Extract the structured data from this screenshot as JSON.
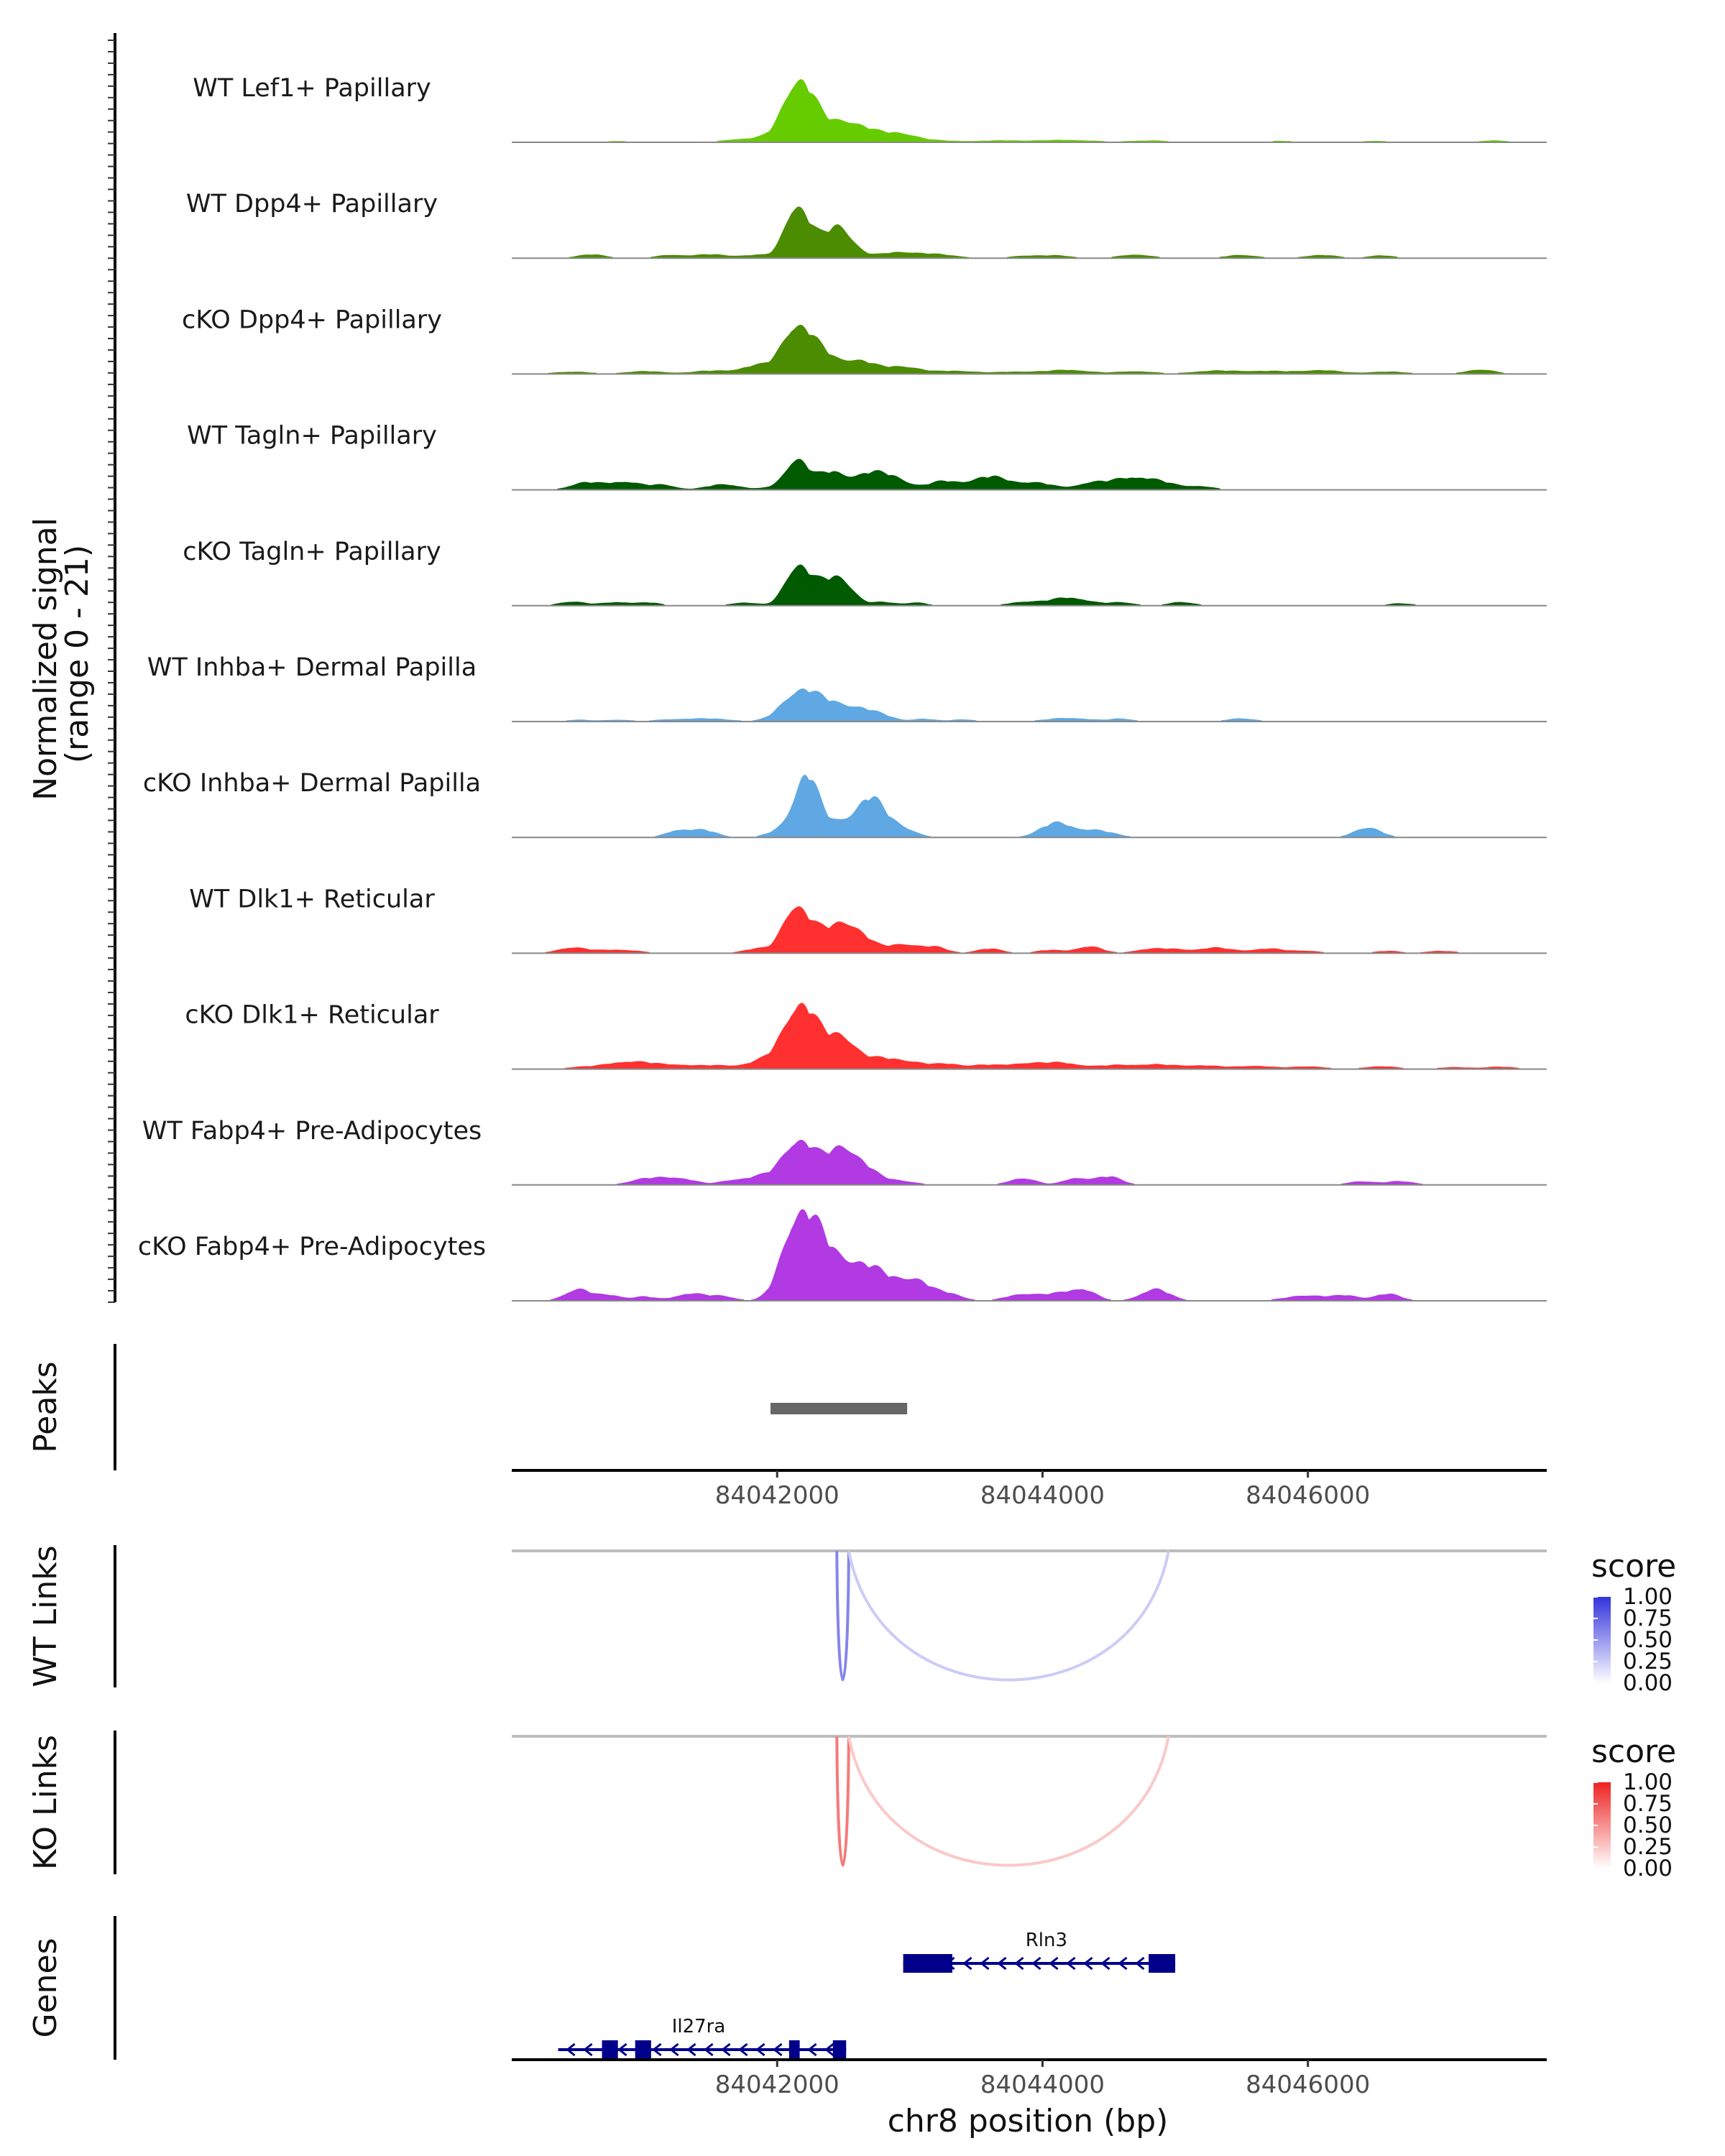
{
  "chart_data": {
    "type": "area",
    "title": "",
    "xlabel": "chr8 position (bp)",
    "xlim": [
      84040000,
      84047800
    ],
    "xticks": [
      84042000,
      84044000,
      84046000
    ],
    "xtick_labels": [
      "84042000",
      "84044000",
      "84046000"
    ],
    "coverage": {
      "ylabel": "Normalized signal\n(range 0 - 21)",
      "ylabel_lines": [
        "Normalized signal",
        "(range 0 - 21)"
      ],
      "ylim": [
        0,
        21
      ],
      "tracks": [
        {
          "name": "WT Lef1+ Papillary",
          "color": "#66cc00",
          "peaks": [
            [
              84040800,
              0.3,
              110
            ],
            [
              84041700,
              0.6,
              120
            ],
            [
              84042050,
              2.0,
              150
            ],
            [
              84042130,
              9.0,
              90
            ],
            [
              84042250,
              6.0,
              90
            ],
            [
              84042480,
              4.0,
              130
            ],
            [
              84042700,
              2.0,
              140
            ],
            [
              84042950,
              1.5,
              110
            ],
            [
              84043200,
              0.4,
              150
            ],
            [
              84043700,
              0.4,
              200
            ],
            [
              84044200,
              0.5,
              200
            ],
            [
              84044800,
              0.4,
              160
            ],
            [
              84045800,
              0.3,
              120
            ],
            [
              84046500,
              0.3,
              150
            ],
            [
              84047400,
              0.4,
              120
            ]
          ]
        },
        {
          "name": "WT Dpp4+ Papillary",
          "color": "#4c8c00",
          "peaks": [
            [
              84040600,
              0.8,
              110
            ],
            [
              84041200,
              0.7,
              110
            ],
            [
              84041500,
              0.8,
              120
            ],
            [
              84041850,
              0.7,
              130
            ],
            [
              84042130,
              10.0,
              80
            ],
            [
              84042250,
              4.0,
              80
            ],
            [
              84042450,
              3.0,
              90
            ],
            [
              84042480,
              4.0,
              110
            ],
            [
              84042900,
              1.2,
              140
            ],
            [
              84043200,
              0.8,
              160
            ],
            [
              84043850,
              0.5,
              100
            ],
            [
              84044100,
              0.6,
              120
            ],
            [
              84044700,
              0.8,
              120
            ],
            [
              84045500,
              0.7,
              120
            ],
            [
              84046100,
              0.7,
              120
            ],
            [
              84046550,
              0.6,
              100
            ]
          ]
        },
        {
          "name": "cKO Dpp4+ Papillary",
          "color": "#4c8c00",
          "peaks": [
            [
              84040450,
              0.5,
              150
            ],
            [
              84041000,
              0.6,
              150
            ],
            [
              84041500,
              0.7,
              150
            ],
            [
              84041850,
              1.8,
              120
            ],
            [
              84042130,
              9.0,
              100
            ],
            [
              84042300,
              5.0,
              110
            ],
            [
              84042600,
              3.0,
              130
            ],
            [
              84042950,
              1.6,
              130
            ],
            [
              84043350,
              0.7,
              150
            ],
            [
              84043800,
              0.5,
              150
            ],
            [
              84044200,
              0.9,
              160
            ],
            [
              84044700,
              0.6,
              140
            ],
            [
              84045300,
              0.7,
              180
            ],
            [
              84045700,
              0.6,
              170
            ],
            [
              84046100,
              0.8,
              150
            ],
            [
              84046600,
              0.5,
              160
            ],
            [
              84047300,
              1.0,
              110
            ]
          ]
        },
        {
          "name": "WT Tagln+ Papillary",
          "color": "#005a00",
          "peaks": [
            [
              84040550,
              1.5,
              110
            ],
            [
              84040850,
              1.8,
              130
            ],
            [
              84041150,
              1.0,
              90
            ],
            [
              84041600,
              1.2,
              130
            ],
            [
              84042000,
              0.7,
              90
            ],
            [
              84042150,
              6.5,
              80
            ],
            [
              84042400,
              3.8,
              110
            ],
            [
              84042700,
              3.5,
              120
            ],
            [
              84042900,
              2.0,
              100
            ],
            [
              84043250,
              1.8,
              120
            ],
            [
              84043600,
              2.8,
              140
            ],
            [
              84043950,
              1.5,
              140
            ],
            [
              84044350,
              1.2,
              100
            ],
            [
              84044650,
              2.5,
              160
            ],
            [
              84044900,
              1.2,
              140
            ],
            [
              84045200,
              0.7,
              100
            ]
          ]
        },
        {
          "name": "cKO Tagln+ Papillary",
          "color": "#005a00",
          "peaks": [
            [
              84040450,
              0.9,
              100
            ],
            [
              84040800,
              0.8,
              120
            ],
            [
              84041050,
              0.6,
              80
            ],
            [
              84041750,
              0.7,
              100
            ],
            [
              84042150,
              8.5,
              90
            ],
            [
              84042350,
              4.0,
              100
            ],
            [
              84042500,
              4.5,
              90
            ],
            [
              84042800,
              0.8,
              90
            ],
            [
              84043050,
              0.7,
              80
            ],
            [
              84043850,
              0.8,
              110
            ],
            [
              84044200,
              1.8,
              150
            ],
            [
              84044600,
              0.7,
              100
            ],
            [
              84045050,
              0.8,
              100
            ],
            [
              84046700,
              0.5,
              100
            ]
          ]
        },
        {
          "name": "WT Inhba+ Dermal Papilla",
          "color": "#5fa8e3",
          "peaks": [
            [
              84040500,
              0.4,
              100
            ],
            [
              84040800,
              0.4,
              100
            ],
            [
              84041200,
              0.4,
              150
            ],
            [
              84041500,
              0.6,
              170
            ],
            [
              84042000,
              1.0,
              90
            ],
            [
              84042150,
              5.5,
              100
            ],
            [
              84042300,
              3.5,
              100
            ],
            [
              84042480,
              3.0,
              110
            ],
            [
              84042650,
              1.8,
              90
            ],
            [
              84042800,
              1.2,
              90
            ],
            [
              84043100,
              0.6,
              90
            ],
            [
              84043400,
              0.5,
              90
            ],
            [
              84044200,
              0.8,
              170
            ],
            [
              84044600,
              0.6,
              90
            ],
            [
              84045500,
              0.7,
              110
            ]
          ]
        },
        {
          "name": "cKO Inhba+ Dermal Papilla",
          "color": "#5fa8e3",
          "peaks": [
            [
              84041250,
              1.5,
              90
            ],
            [
              84041450,
              1.5,
              100
            ],
            [
              84042000,
              1.2,
              90
            ],
            [
              84042200,
              9.0,
              90
            ],
            [
              84042250,
              5.0,
              90
            ],
            [
              84042480,
              3.0,
              120
            ],
            [
              84042700,
              7.5,
              100
            ],
            [
              84042900,
              2.5,
              120
            ],
            [
              84044100,
              3.0,
              120
            ],
            [
              84044400,
              1.5,
              140
            ],
            [
              84046450,
              2.2,
              100
            ]
          ]
        },
        {
          "name": "WT Dlk1+ Reticular",
          "color": "#ff3030",
          "peaks": [
            [
              84040450,
              1.2,
              110
            ],
            [
              84040800,
              0.8,
              160
            ],
            [
              84041850,
              1.0,
              110
            ],
            [
              84042130,
              9.5,
              90
            ],
            [
              84042300,
              4.0,
              100
            ],
            [
              84042500,
              5.5,
              100
            ],
            [
              84042650,
              2.5,
              100
            ],
            [
              84042950,
              2.0,
              120
            ],
            [
              84043200,
              1.2,
              90
            ],
            [
              84043600,
              1.0,
              100
            ],
            [
              84044050,
              0.7,
              100
            ],
            [
              84044350,
              1.5,
              100
            ],
            [
              84044800,
              0.9,
              110
            ],
            [
              84045000,
              0.7,
              100
            ],
            [
              84045300,
              1.2,
              130
            ],
            [
              84045700,
              1.0,
              130
            ],
            [
              84046000,
              0.5,
              100
            ],
            [
              84046600,
              0.5,
              100
            ],
            [
              84047000,
              0.5,
              120
            ]
          ]
        },
        {
          "name": "cKO Dlk1+ Reticular",
          "color": "#ff3030",
          "peaks": [
            [
              84040500,
              0.4,
              100
            ],
            [
              84040800,
              1.2,
              140
            ],
            [
              84041000,
              1.0,
              130
            ],
            [
              84041250,
              0.8,
              120
            ],
            [
              84041550,
              0.8,
              140
            ],
            [
              84041900,
              1.8,
              120
            ],
            [
              84042150,
              12.0,
              110
            ],
            [
              84042300,
              5.0,
              110
            ],
            [
              84042500,
              6.0,
              100
            ],
            [
              84042750,
              2.0,
              130
            ],
            [
              84043000,
              1.5,
              140
            ],
            [
              84043300,
              1.0,
              100
            ],
            [
              84043550,
              0.8,
              100
            ],
            [
              84043850,
              1.2,
              140
            ],
            [
              84044150,
              1.3,
              140
            ],
            [
              84044550,
              0.8,
              140
            ],
            [
              84044850,
              0.9,
              140
            ],
            [
              84045200,
              0.8,
              150
            ],
            [
              84045600,
              0.7,
              130
            ],
            [
              84046000,
              0.6,
              130
            ],
            [
              84046550,
              0.6,
              130
            ],
            [
              84047100,
              0.4,
              130
            ],
            [
              84047450,
              0.5,
              120
            ]
          ]
        },
        {
          "name": "WT Fabp4+ Pre-Adipocytes",
          "color": "#b13ae3",
          "peaks": [
            [
              84041000,
              1.2,
              120
            ],
            [
              84041250,
              1.5,
              130
            ],
            [
              84041650,
              0.8,
              90
            ],
            [
              84041900,
              2.0,
              130
            ],
            [
              84042100,
              5.0,
              90
            ],
            [
              84042200,
              5.5,
              90
            ],
            [
              84042350,
              4.0,
              100
            ],
            [
              84042500,
              6.0,
              90
            ],
            [
              84042650,
              3.5,
              100
            ],
            [
              84042900,
              1.0,
              130
            ],
            [
              84043850,
              1.5,
              100
            ],
            [
              84044250,
              1.5,
              90
            ],
            [
              84044500,
              1.8,
              100
            ],
            [
              84046400,
              0.8,
              100
            ],
            [
              84046700,
              0.8,
              110
            ]
          ]
        },
        {
          "name": "cKO Fabp4+ Pre-Adipocytes",
          "color": "#b13ae3",
          "peaks": [
            [
              84040500,
              2.5,
              100
            ],
            [
              84040750,
              1.2,
              90
            ],
            [
              84041000,
              0.9,
              80
            ],
            [
              84041350,
              1.6,
              120
            ],
            [
              84041600,
              0.9,
              90
            ],
            [
              84042050,
              3.0,
              100
            ],
            [
              84042150,
              14.0,
              100
            ],
            [
              84042300,
              10.0,
              100
            ],
            [
              84042500,
              7.5,
              130
            ],
            [
              84042700,
              4.0,
              110
            ],
            [
              84042850,
              3.0,
              120
            ],
            [
              84043050,
              4.0,
              110
            ],
            [
              84043300,
              1.5,
              100
            ],
            [
              84043850,
              1.5,
              120
            ],
            [
              84044100,
              1.2,
              100
            ],
            [
              84044300,
              2.5,
              100
            ],
            [
              84044850,
              2.5,
              110
            ],
            [
              84046000,
              1.2,
              160
            ],
            [
              84046300,
              1.0,
              90
            ],
            [
              84046600,
              1.5,
              100
            ]
          ]
        }
      ]
    },
    "peaks_track": {
      "label": "Peaks",
      "color": "#666666",
      "regions": [
        [
          84041950,
          84042980
        ]
      ]
    },
    "links": {
      "wt_label": "WT Links",
      "ko_label": "KO Links",
      "legend_title": "score",
      "legend_ticks": [
        "1.00",
        "0.75",
        "0.50",
        "0.25",
        "0.00"
      ],
      "wt_color": "#3333dd",
      "ko_color": "#ee2222",
      "wt_arcs": [
        {
          "start": 84042450,
          "end": 84042540,
          "score": 0.6
        },
        {
          "start": 84042540,
          "end": 84044950,
          "score": 0.25
        }
      ],
      "ko_arcs": [
        {
          "start": 84042450,
          "end": 84042540,
          "score": 0.6
        },
        {
          "start": 84042540,
          "end": 84044950,
          "score": 0.25
        }
      ]
    },
    "genes": {
      "label": "Genes",
      "color": "#00008b",
      "list": [
        {
          "name": "Rln3",
          "strand": "-",
          "start": 84042950,
          "end": 84045000,
          "row": 0,
          "exons": [
            [
              84042950,
              84043320
            ],
            [
              84044800,
              84045000
            ]
          ]
        },
        {
          "name": "Il27ra",
          "strand": "-",
          "start": 84040350,
          "end": 84042520,
          "row": 1,
          "exons": [
            [
              84040680,
              84040800
            ],
            [
              84040930,
              84041050
            ],
            [
              84042090,
              84042170
            ],
            [
              84042420,
              84042520
            ]
          ]
        }
      ]
    }
  }
}
